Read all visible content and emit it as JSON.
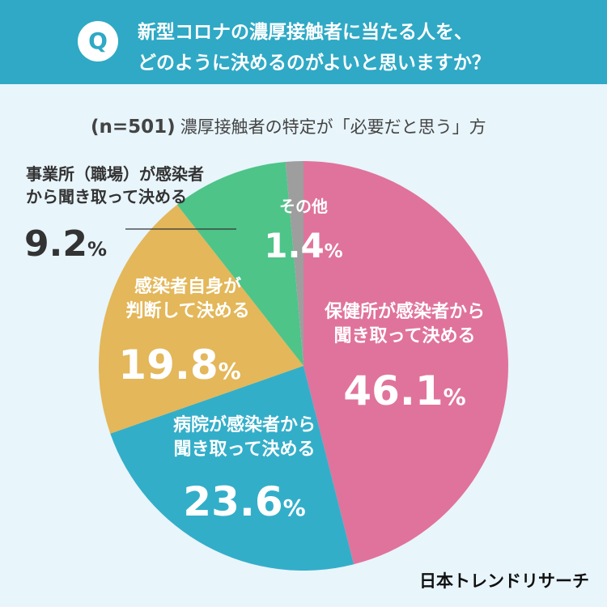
{
  "header": {
    "badge": "Q",
    "question_line1": "新型コロナの濃厚接触者に当たる人を、",
    "question_line2": "どのように決めるのがよいと思いますか？"
  },
  "subtitle": {
    "n": "(n=501)",
    "text": "濃厚接触者の特定が「必要だと思う」方"
  },
  "brand": "日本トレンドリサーチ",
  "chart_data": {
    "type": "pie",
    "unit": "%",
    "start": "12 o'clock",
    "direction": "clockwise",
    "slices": [
      {
        "label_line1": "保健所が感染者から",
        "label_line2": "聞き取って決める",
        "value": 46.1,
        "value_text": "46.1",
        "color": "#e0739b"
      },
      {
        "label_line1": "病院が感染者から",
        "label_line2": "聞き取って決める",
        "value": 23.6,
        "value_text": "23.6",
        "color": "#33aec9"
      },
      {
        "label_line1": "感染者自身が",
        "label_line2": "判断して決める",
        "value": 19.8,
        "value_text": "19.8",
        "color": "#e3b75a"
      },
      {
        "label_line1": "事業所（職場）が感染者",
        "label_line2": "から聞き取って決める",
        "value": 9.2,
        "value_text": "9.2",
        "color": "#4ec488"
      },
      {
        "label_line1": "その他",
        "label_line2": "",
        "value": 1.4,
        "value_text": "1.4",
        "color": "#9e9e9e"
      }
    ]
  }
}
